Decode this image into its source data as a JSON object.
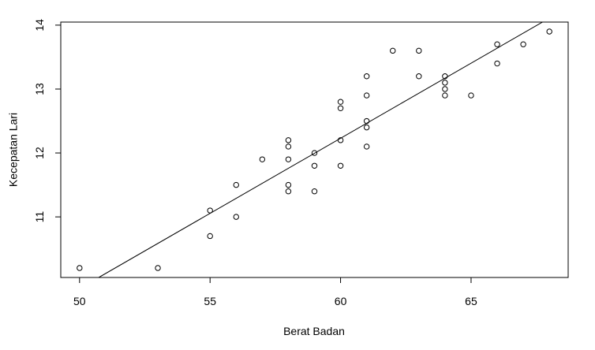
{
  "chart_data": {
    "type": "scatter",
    "xlabel": "Berat Badan",
    "ylabel": "Kecepatan Lari",
    "x": [
      50,
      53,
      55,
      55,
      56,
      56,
      57,
      58,
      58,
      58,
      58,
      58,
      59,
      59,
      59,
      60,
      60,
      60,
      60,
      61,
      61,
      61,
      61,
      61,
      62,
      63,
      63,
      64,
      64,
      64,
      64,
      65,
      66,
      66,
      67,
      68
    ],
    "values": [
      10.2,
      10.2,
      11.1,
      10.7,
      11.5,
      11.0,
      11.9,
      12.2,
      12.1,
      11.9,
      11.5,
      11.4,
      12.0,
      11.8,
      11.4,
      12.8,
      12.7,
      12.2,
      11.8,
      13.2,
      12.9,
      12.5,
      12.4,
      12.1,
      13.6,
      13.6,
      13.2,
      13.2,
      13.1,
      13.0,
      12.9,
      12.9,
      13.7,
      13.4,
      13.7,
      13.9
    ],
    "color": "#000000",
    "regression_line": {
      "intercept": -1.87,
      "slope": 0.235
    },
    "xlim": [
      49.28,
      68.72
    ],
    "ylim": [
      10.052,
      14.048
    ],
    "xticks": [
      50,
      55,
      60,
      65
    ],
    "yticks": [
      11,
      12,
      13,
      14
    ]
  }
}
